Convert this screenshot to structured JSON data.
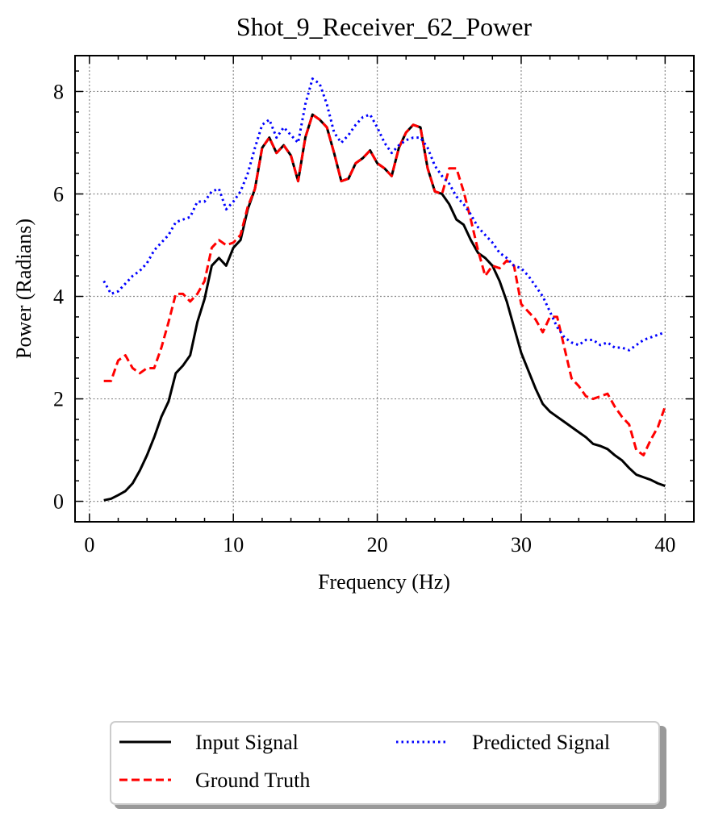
{
  "chart_data": {
    "type": "line",
    "title": "Shot_9_Receiver_62_Power",
    "xlabel": "Frequency (Hz)",
    "ylabel": "Power (Radians)",
    "x": [
      1,
      1.5,
      2,
      2.5,
      3,
      3.5,
      4,
      4.5,
      5,
      5.5,
      6,
      6.5,
      7,
      7.5,
      8,
      8.5,
      9,
      9.5,
      10,
      10.5,
      11,
      11.5,
      12,
      12.5,
      13,
      13.5,
      14,
      14.5,
      15,
      15.5,
      16,
      16.5,
      17,
      17.5,
      18,
      18.5,
      19,
      19.5,
      20,
      20.5,
      21,
      21.5,
      22,
      22.5,
      23,
      23.5,
      24,
      24.5,
      25,
      25.5,
      26,
      26.5,
      27,
      27.5,
      28,
      28.5,
      29,
      29.5,
      30,
      30.5,
      31,
      31.5,
      32,
      32.5,
      33,
      33.5,
      34,
      34.5,
      35,
      35.5,
      36,
      36.5,
      37,
      37.5,
      38,
      38.5,
      39,
      39.5,
      40
    ],
    "series": [
      {
        "name": "Input Signal",
        "color": "#000000",
        "dash": "solid",
        "values": [
          0.02,
          0.05,
          0.12,
          0.2,
          0.35,
          0.6,
          0.9,
          1.25,
          1.65,
          1.95,
          2.5,
          2.65,
          2.85,
          3.5,
          3.95,
          4.6,
          4.75,
          4.6,
          4.95,
          5.1,
          5.7,
          6.1,
          6.9,
          7.1,
          6.8,
          6.95,
          6.75,
          6.25,
          7.1,
          7.55,
          7.45,
          7.3,
          6.8,
          6.25,
          6.3,
          6.6,
          6.7,
          6.85,
          6.6,
          6.5,
          6.35,
          6.9,
          7.2,
          7.35,
          7.3,
          6.5,
          6.05,
          6.0,
          5.8,
          5.5,
          5.4,
          5.1,
          4.85,
          4.75,
          4.6,
          4.3,
          3.9,
          3.4,
          2.9,
          2.55,
          2.2,
          1.9,
          1.75,
          1.65,
          1.55,
          1.45,
          1.35,
          1.25,
          1.12,
          1.08,
          1.02,
          0.9,
          0.8,
          0.65,
          0.52,
          0.47,
          0.42,
          0.35,
          0.3
        ]
      },
      {
        "name": "Ground Truth",
        "color": "#ff0000",
        "dash": "dashed",
        "values": [
          2.35,
          2.35,
          2.75,
          2.85,
          2.6,
          2.5,
          2.6,
          2.6,
          3.0,
          3.5,
          4.05,
          4.05,
          3.9,
          4.05,
          4.3,
          4.95,
          5.1,
          5.0,
          5.05,
          5.2,
          5.75,
          6.1,
          6.9,
          7.1,
          6.8,
          6.95,
          6.75,
          6.25,
          7.1,
          7.55,
          7.45,
          7.3,
          6.8,
          6.25,
          6.3,
          6.6,
          6.7,
          6.85,
          6.6,
          6.5,
          6.35,
          6.9,
          7.2,
          7.35,
          7.3,
          6.5,
          6.05,
          6.0,
          6.5,
          6.5,
          6.05,
          5.5,
          4.9,
          4.4,
          4.6,
          4.55,
          4.7,
          4.6,
          3.85,
          3.7,
          3.55,
          3.3,
          3.6,
          3.6,
          3.0,
          2.4,
          2.25,
          2.05,
          2.0,
          2.05,
          2.1,
          1.85,
          1.65,
          1.5,
          1.0,
          0.9,
          1.2,
          1.45,
          1.85
        ]
      },
      {
        "name": "Predicted Signal",
        "color": "#0000ff",
        "dash": "dotted",
        "values": [
          4.3,
          4.05,
          4.1,
          4.25,
          4.4,
          4.5,
          4.65,
          4.9,
          5.05,
          5.2,
          5.45,
          5.5,
          5.55,
          5.85,
          5.85,
          6.05,
          6.1,
          5.7,
          5.85,
          6.05,
          6.4,
          6.9,
          7.35,
          7.45,
          7.1,
          7.3,
          7.15,
          7.0,
          7.75,
          8.25,
          8.15,
          7.75,
          7.2,
          7.0,
          7.15,
          7.35,
          7.5,
          7.55,
          7.3,
          7.0,
          6.8,
          6.95,
          7.05,
          7.1,
          7.1,
          6.9,
          6.55,
          6.35,
          6.2,
          5.95,
          5.8,
          5.6,
          5.35,
          5.2,
          5.05,
          4.85,
          4.75,
          4.6,
          4.55,
          4.4,
          4.2,
          4.0,
          3.7,
          3.4,
          3.2,
          3.1,
          3.05,
          3.15,
          3.15,
          3.05,
          3.1,
          3.0,
          3.0,
          2.95,
          3.05,
          3.15,
          3.2,
          3.25,
          3.3
        ]
      }
    ],
    "xlim": [
      -1,
      42
    ],
    "ylim": [
      -0.4,
      8.7
    ],
    "xticks": [
      0,
      10,
      20,
      30,
      40
    ],
    "yticks": [
      0,
      2,
      4,
      6,
      8
    ],
    "xminorticks": [
      2,
      4,
      6,
      8,
      12,
      14,
      16,
      18,
      22,
      24,
      26,
      28,
      32,
      34,
      36,
      38,
      42
    ],
    "yminorticks": [
      0.4,
      0.8,
      1.2,
      1.6,
      2.4,
      2.8,
      3.2,
      3.6,
      4.4,
      4.8,
      5.2,
      5.6,
      6.4,
      6.8,
      7.2,
      7.6,
      8.4
    ],
    "grid": true,
    "legend_loc": "below",
    "legend_columns": 2
  }
}
